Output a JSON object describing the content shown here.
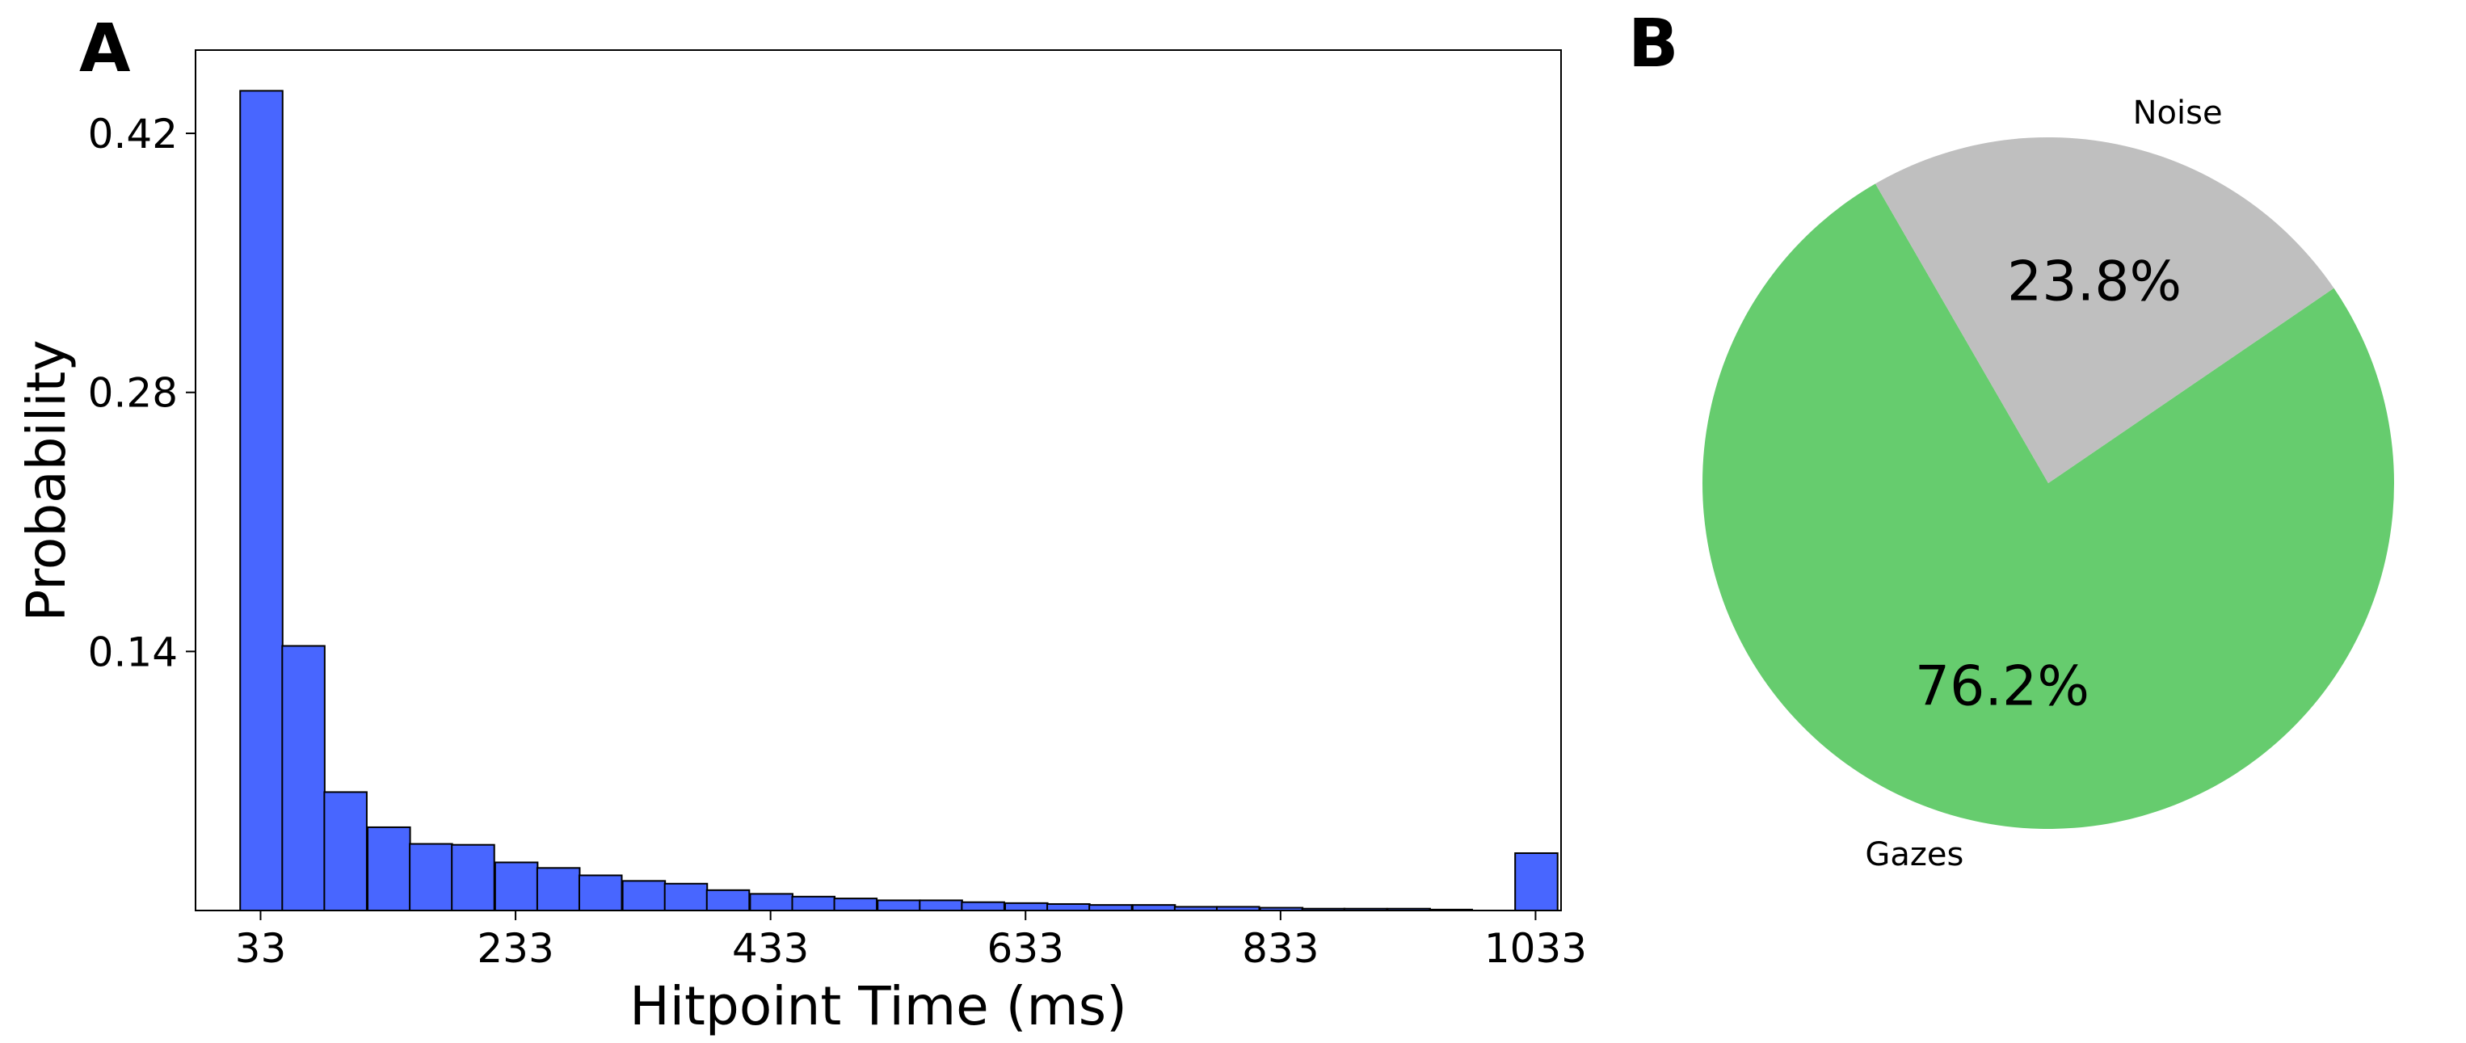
{
  "panels": {
    "a_letter": "A",
    "b_letter": "B"
  },
  "colors": {
    "bar": "#4866FF",
    "gazes": "#66CC6E",
    "noise": "#BFBFBF"
  },
  "chart_data": [
    {
      "type": "bar",
      "title": "",
      "xlabel": "Hitpoint Time (ms)",
      "ylabel": "Probability",
      "xlim": [
        -18,
        1053
      ],
      "ylim": [
        0,
        0.465
      ],
      "x_ticks": [
        33,
        233,
        433,
        633,
        833,
        1033
      ],
      "x_tick_labels": [
        "33",
        "233",
        "433",
        "633",
        "833",
        "1033"
      ],
      "y_ticks": [
        0.14,
        0.28,
        0.42
      ],
      "y_tick_labels": [
        "0.14",
        "0.28",
        "0.42"
      ],
      "bin_width": 33.3,
      "bins_start": [
        17,
        50,
        83,
        117,
        150,
        183,
        217,
        250,
        283,
        317,
        350,
        383,
        417,
        450,
        483,
        517,
        550,
        583,
        617,
        650,
        683,
        717,
        750,
        783,
        817,
        850,
        883,
        917,
        950,
        983,
        1017
      ],
      "values": [
        0.443,
        0.143,
        0.064,
        0.045,
        0.036,
        0.0355,
        0.026,
        0.023,
        0.019,
        0.016,
        0.0145,
        0.011,
        0.009,
        0.0075,
        0.0065,
        0.0055,
        0.0055,
        0.0045,
        0.004,
        0.0035,
        0.003,
        0.003,
        0.002,
        0.002,
        0.0015,
        0.001,
        0.001,
        0.001,
        0.0005,
        0.0,
        0.031
      ],
      "grid": false,
      "legend": "none"
    },
    {
      "type": "pie",
      "title": "",
      "labels": [
        "Gazes",
        "Noise"
      ],
      "values": [
        76.2,
        23.8
      ],
      "pct_labels": [
        "76.2%",
        "23.8%"
      ],
      "start_angle_deg": 120,
      "legend": "none"
    }
  ]
}
